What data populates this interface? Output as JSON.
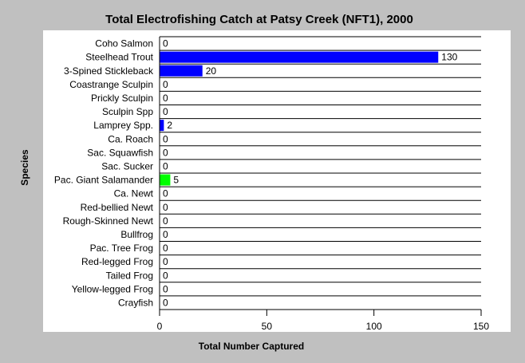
{
  "chart_data": {
    "type": "bar",
    "orientation": "horizontal",
    "title": "Total Electrofishing Catch at Patsy Creek (NFT1), 2000",
    "xlabel": "Total Number Captured",
    "ylabel": "Species",
    "xlim": [
      0,
      150
    ],
    "xticks": [
      0,
      50,
      100,
      150
    ],
    "grid": "horizontal lines between categories",
    "categories": [
      "Coho Salmon",
      "Steelhead Trout",
      "3-Spined Stickleback",
      "Coastrange Sculpin",
      "Prickly Sculpin",
      "Sculpin Spp",
      "Lamprey Spp.",
      "Ca. Roach",
      "Sac. Squawfish",
      "Sac. Sucker",
      "Pac. Giant Salamander",
      "Ca. Newt",
      "Red-bellied Newt",
      "Rough-Skinned Newt",
      "Bullfrog",
      "Pac. Tree Frog",
      "Red-legged Frog",
      "Tailed Frog",
      "Yellow-legged Frog",
      "Crayfish"
    ],
    "values": [
      0,
      130,
      20,
      0,
      0,
      0,
      2,
      0,
      0,
      0,
      5,
      0,
      0,
      0,
      0,
      0,
      0,
      0,
      0,
      0
    ],
    "bar_colors": [
      "#0000ff",
      "#0000ff",
      "#0000ff",
      "#0000ff",
      "#0000ff",
      "#0000ff",
      "#0000ff",
      "#0000ff",
      "#0000ff",
      "#0000ff",
      "#00ff00",
      "#0000ff",
      "#0000ff",
      "#0000ff",
      "#0000ff",
      "#0000ff",
      "#0000ff",
      "#0000ff",
      "#0000ff",
      "#0000ff"
    ],
    "background_color": "#c0c0c0",
    "plot_background_color": "#ffffff"
  }
}
